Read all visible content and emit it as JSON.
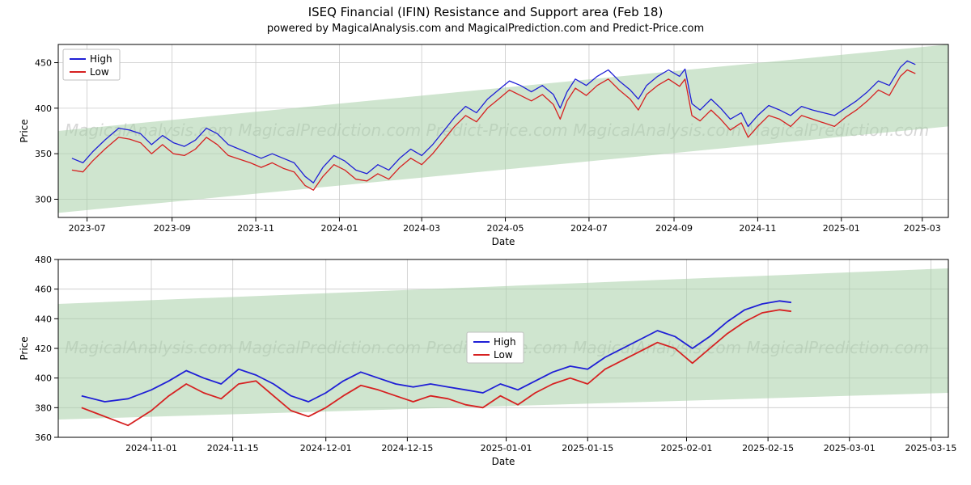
{
  "title": "ISEQ Financial (IFIN) Resistance and Support area (Feb 18)",
  "title_fontsize": 15,
  "subtitle": "powered by MagicalAnalysis.com and MagicalPrediction.com and Predict-Price.com",
  "subtitle_fontsize": 13,
  "watermark_text": "MagicalAnalysis.com   MagicalPrediction.com   Predict-Price.com   MagicalAnalysis.com   MagicalPrediction.com",
  "colors": {
    "high": "#1f1fd6",
    "low": "#d62121",
    "band_fill": "#a8d0a8",
    "band_fill_opacity": 0.55,
    "grid": "#c9c9c9",
    "axis": "#000000",
    "frame": "#000000",
    "background": "#ffffff"
  },
  "legend": {
    "labels": [
      "High",
      "Low"
    ]
  },
  "top_chart": {
    "ylabel": "Price",
    "xlabel": "Date",
    "ylim": [
      280,
      470
    ],
    "yticks": [
      300,
      350,
      400,
      450
    ],
    "x_start": "2023-06-10",
    "x_end": "2025-03-20",
    "extra_band_end": "2025-03-20",
    "xticks": [
      "2023-07",
      "2023-09",
      "2023-11",
      "2024-01",
      "2024-03",
      "2024-05",
      "2024-07",
      "2024-09",
      "2024-11",
      "2025-01",
      "2025-03"
    ],
    "line_width": 1.3,
    "band": {
      "start_low": 285,
      "start_high": 375,
      "end_low": 380,
      "end_high": 470
    },
    "high_series": [
      [
        "2023-06-20",
        345
      ],
      [
        "2023-06-28",
        340
      ],
      [
        "2023-07-05",
        352
      ],
      [
        "2023-07-14",
        365
      ],
      [
        "2023-07-24",
        378
      ],
      [
        "2023-08-01",
        376
      ],
      [
        "2023-08-09",
        372
      ],
      [
        "2023-08-17",
        360
      ],
      [
        "2023-08-25",
        370
      ],
      [
        "2023-09-02",
        362
      ],
      [
        "2023-09-10",
        358
      ],
      [
        "2023-09-18",
        365
      ],
      [
        "2023-09-26",
        378
      ],
      [
        "2023-10-04",
        372
      ],
      [
        "2023-10-12",
        360
      ],
      [
        "2023-10-20",
        355
      ],
      [
        "2023-10-28",
        350
      ],
      [
        "2023-11-05",
        345
      ],
      [
        "2023-11-13",
        350
      ],
      [
        "2023-11-21",
        345
      ],
      [
        "2023-11-29",
        340
      ],
      [
        "2023-12-07",
        325
      ],
      [
        "2023-12-13",
        318
      ],
      [
        "2023-12-20",
        335
      ],
      [
        "2023-12-28",
        348
      ],
      [
        "2024-01-05",
        342
      ],
      [
        "2024-01-13",
        332
      ],
      [
        "2024-01-21",
        328
      ],
      [
        "2024-01-29",
        338
      ],
      [
        "2024-02-06",
        332
      ],
      [
        "2024-02-14",
        345
      ],
      [
        "2024-02-22",
        355
      ],
      [
        "2024-03-01",
        348
      ],
      [
        "2024-03-09",
        360
      ],
      [
        "2024-03-17",
        375
      ],
      [
        "2024-03-25",
        390
      ],
      [
        "2024-04-02",
        402
      ],
      [
        "2024-04-10",
        395
      ],
      [
        "2024-04-18",
        410
      ],
      [
        "2024-04-26",
        420
      ],
      [
        "2024-05-04",
        430
      ],
      [
        "2024-05-12",
        425
      ],
      [
        "2024-05-20",
        418
      ],
      [
        "2024-05-28",
        425
      ],
      [
        "2024-06-05",
        415
      ],
      [
        "2024-06-10",
        400
      ],
      [
        "2024-06-15",
        418
      ],
      [
        "2024-06-21",
        432
      ],
      [
        "2024-06-29",
        425
      ],
      [
        "2024-07-07",
        435
      ],
      [
        "2024-07-15",
        442
      ],
      [
        "2024-07-23",
        430
      ],
      [
        "2024-07-31",
        420
      ],
      [
        "2024-08-06",
        410
      ],
      [
        "2024-08-12",
        425
      ],
      [
        "2024-08-20",
        435
      ],
      [
        "2024-08-28",
        442
      ],
      [
        "2024-09-05",
        435
      ],
      [
        "2024-09-09",
        443
      ],
      [
        "2024-09-14",
        405
      ],
      [
        "2024-09-20",
        398
      ],
      [
        "2024-09-28",
        410
      ],
      [
        "2024-10-05",
        400
      ],
      [
        "2024-10-12",
        388
      ],
      [
        "2024-10-20",
        395
      ],
      [
        "2024-10-25",
        380
      ],
      [
        "2024-11-01",
        392
      ],
      [
        "2024-11-09",
        403
      ],
      [
        "2024-11-17",
        398
      ],
      [
        "2024-11-25",
        392
      ],
      [
        "2024-12-03",
        402
      ],
      [
        "2024-12-11",
        398
      ],
      [
        "2024-12-19",
        395
      ],
      [
        "2024-12-27",
        392
      ],
      [
        "2025-01-04",
        400
      ],
      [
        "2025-01-12",
        408
      ],
      [
        "2025-01-20",
        418
      ],
      [
        "2025-01-28",
        430
      ],
      [
        "2025-02-05",
        425
      ],
      [
        "2025-02-13",
        445
      ],
      [
        "2025-02-18",
        452
      ],
      [
        "2025-02-24",
        448
      ]
    ],
    "low_series": [
      [
        "2023-06-20",
        332
      ],
      [
        "2023-06-28",
        330
      ],
      [
        "2023-07-05",
        342
      ],
      [
        "2023-07-14",
        355
      ],
      [
        "2023-07-24",
        368
      ],
      [
        "2023-08-01",
        366
      ],
      [
        "2023-08-09",
        362
      ],
      [
        "2023-08-17",
        350
      ],
      [
        "2023-08-25",
        360
      ],
      [
        "2023-09-02",
        350
      ],
      [
        "2023-09-10",
        348
      ],
      [
        "2023-09-18",
        355
      ],
      [
        "2023-09-26",
        368
      ],
      [
        "2023-10-04",
        360
      ],
      [
        "2023-10-12",
        348
      ],
      [
        "2023-10-20",
        344
      ],
      [
        "2023-10-28",
        340
      ],
      [
        "2023-11-05",
        335
      ],
      [
        "2023-11-13",
        340
      ],
      [
        "2023-11-21",
        334
      ],
      [
        "2023-11-29",
        330
      ],
      [
        "2023-12-07",
        315
      ],
      [
        "2023-12-13",
        310
      ],
      [
        "2023-12-20",
        325
      ],
      [
        "2023-12-28",
        338
      ],
      [
        "2024-01-05",
        332
      ],
      [
        "2024-01-13",
        322
      ],
      [
        "2024-01-21",
        320
      ],
      [
        "2024-01-29",
        328
      ],
      [
        "2024-02-06",
        322
      ],
      [
        "2024-02-14",
        335
      ],
      [
        "2024-02-22",
        345
      ],
      [
        "2024-03-01",
        338
      ],
      [
        "2024-03-09",
        350
      ],
      [
        "2024-03-17",
        365
      ],
      [
        "2024-03-25",
        380
      ],
      [
        "2024-04-02",
        392
      ],
      [
        "2024-04-10",
        385
      ],
      [
        "2024-04-18",
        400
      ],
      [
        "2024-04-26",
        410
      ],
      [
        "2024-05-04",
        420
      ],
      [
        "2024-05-12",
        414
      ],
      [
        "2024-05-20",
        408
      ],
      [
        "2024-05-28",
        415
      ],
      [
        "2024-06-05",
        404
      ],
      [
        "2024-06-10",
        388
      ],
      [
        "2024-06-15",
        408
      ],
      [
        "2024-06-21",
        422
      ],
      [
        "2024-06-29",
        414
      ],
      [
        "2024-07-07",
        425
      ],
      [
        "2024-07-15",
        432
      ],
      [
        "2024-07-23",
        420
      ],
      [
        "2024-07-31",
        410
      ],
      [
        "2024-08-06",
        398
      ],
      [
        "2024-08-12",
        415
      ],
      [
        "2024-08-20",
        425
      ],
      [
        "2024-08-28",
        432
      ],
      [
        "2024-09-05",
        424
      ],
      [
        "2024-09-09",
        432
      ],
      [
        "2024-09-14",
        392
      ],
      [
        "2024-09-20",
        386
      ],
      [
        "2024-09-28",
        398
      ],
      [
        "2024-10-05",
        388
      ],
      [
        "2024-10-12",
        376
      ],
      [
        "2024-10-20",
        384
      ],
      [
        "2024-10-25",
        368
      ],
      [
        "2024-11-01",
        380
      ],
      [
        "2024-11-09",
        392
      ],
      [
        "2024-11-17",
        388
      ],
      [
        "2024-11-25",
        380
      ],
      [
        "2024-12-03",
        392
      ],
      [
        "2024-12-11",
        388
      ],
      [
        "2024-12-19",
        384
      ],
      [
        "2024-12-27",
        380
      ],
      [
        "2025-01-04",
        390
      ],
      [
        "2025-01-12",
        398
      ],
      [
        "2025-01-20",
        408
      ],
      [
        "2025-01-28",
        420
      ],
      [
        "2025-02-05",
        414
      ],
      [
        "2025-02-13",
        435
      ],
      [
        "2025-02-18",
        442
      ],
      [
        "2025-02-24",
        438
      ]
    ]
  },
  "bottom_chart": {
    "ylabel": "Price",
    "xlabel": "Date",
    "ylim": [
      360,
      480
    ],
    "yticks": [
      360,
      380,
      400,
      420,
      440,
      460,
      480
    ],
    "x_start": "2024-10-16",
    "x_end": "2025-03-18",
    "xticks": [
      "2024-11-01",
      "2024-11-15",
      "2024-12-01",
      "2024-12-15",
      "2025-01-01",
      "2025-01-15",
      "2025-02-01",
      "2025-02-15",
      "2025-03-01",
      "2025-03-15"
    ],
    "line_width": 1.8,
    "legend_pos": "center",
    "band": {
      "start_low": 372,
      "start_high": 450,
      "end_low": 390,
      "end_high": 474
    },
    "high_series": [
      [
        "2024-10-20",
        388
      ],
      [
        "2024-10-24",
        384
      ],
      [
        "2024-10-28",
        386
      ],
      [
        "2024-11-01",
        392
      ],
      [
        "2024-11-04",
        398
      ],
      [
        "2024-11-07",
        405
      ],
      [
        "2024-11-10",
        400
      ],
      [
        "2024-11-13",
        396
      ],
      [
        "2024-11-16",
        406
      ],
      [
        "2024-11-19",
        402
      ],
      [
        "2024-11-22",
        396
      ],
      [
        "2024-11-25",
        388
      ],
      [
        "2024-11-28",
        384
      ],
      [
        "2024-12-01",
        390
      ],
      [
        "2024-12-04",
        398
      ],
      [
        "2024-12-07",
        404
      ],
      [
        "2024-12-10",
        400
      ],
      [
        "2024-12-13",
        396
      ],
      [
        "2024-12-16",
        394
      ],
      [
        "2024-12-19",
        396
      ],
      [
        "2024-12-22",
        394
      ],
      [
        "2024-12-25",
        392
      ],
      [
        "2024-12-28",
        390
      ],
      [
        "2024-12-31",
        396
      ],
      [
        "2025-01-03",
        392
      ],
      [
        "2025-01-06",
        398
      ],
      [
        "2025-01-09",
        404
      ],
      [
        "2025-01-12",
        408
      ],
      [
        "2025-01-15",
        406
      ],
      [
        "2025-01-18",
        414
      ],
      [
        "2025-01-21",
        420
      ],
      [
        "2025-01-24",
        426
      ],
      [
        "2025-01-27",
        432
      ],
      [
        "2025-01-30",
        428
      ],
      [
        "2025-02-02",
        420
      ],
      [
        "2025-02-05",
        428
      ],
      [
        "2025-02-08",
        438
      ],
      [
        "2025-02-11",
        446
      ],
      [
        "2025-02-14",
        450
      ],
      [
        "2025-02-17",
        452
      ],
      [
        "2025-02-19",
        451
      ]
    ],
    "low_series": [
      [
        "2024-10-20",
        380
      ],
      [
        "2024-10-24",
        374
      ],
      [
        "2024-10-28",
        368
      ],
      [
        "2024-11-01",
        378
      ],
      [
        "2024-11-04",
        388
      ],
      [
        "2024-11-07",
        396
      ],
      [
        "2024-11-10",
        390
      ],
      [
        "2024-11-13",
        386
      ],
      [
        "2024-11-16",
        396
      ],
      [
        "2024-11-19",
        398
      ],
      [
        "2024-11-22",
        388
      ],
      [
        "2024-11-25",
        378
      ],
      [
        "2024-11-28",
        374
      ],
      [
        "2024-12-01",
        380
      ],
      [
        "2024-12-04",
        388
      ],
      [
        "2024-12-07",
        395
      ],
      [
        "2024-12-10",
        392
      ],
      [
        "2024-12-13",
        388
      ],
      [
        "2024-12-16",
        384
      ],
      [
        "2024-12-19",
        388
      ],
      [
        "2024-12-22",
        386
      ],
      [
        "2024-12-25",
        382
      ],
      [
        "2024-12-28",
        380
      ],
      [
        "2024-12-31",
        388
      ],
      [
        "2025-01-03",
        382
      ],
      [
        "2025-01-06",
        390
      ],
      [
        "2025-01-09",
        396
      ],
      [
        "2025-01-12",
        400
      ],
      [
        "2025-01-15",
        396
      ],
      [
        "2025-01-18",
        406
      ],
      [
        "2025-01-21",
        412
      ],
      [
        "2025-01-24",
        418
      ],
      [
        "2025-01-27",
        424
      ],
      [
        "2025-01-30",
        420
      ],
      [
        "2025-02-02",
        410
      ],
      [
        "2025-02-05",
        420
      ],
      [
        "2025-02-08",
        430
      ],
      [
        "2025-02-11",
        438
      ],
      [
        "2025-02-14",
        444
      ],
      [
        "2025-02-17",
        446
      ],
      [
        "2025-02-19",
        445
      ]
    ]
  }
}
